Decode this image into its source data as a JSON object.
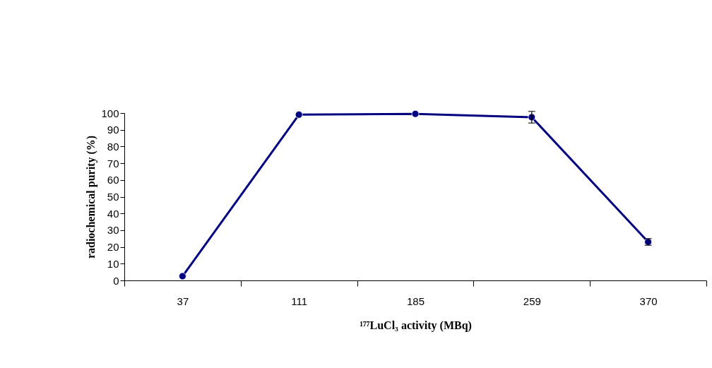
{
  "chart_data": {
    "type": "line",
    "xlabel": "¹⁷⁷LuCl₃ activity  (MBq)",
    "ylabel": "radiochemical purity    (%)",
    "categories": [
      "37",
      "111",
      "185",
      "259",
      "370"
    ],
    "series": [
      {
        "color": "#000080",
        "values": [
          2.5,
          99,
          99.5,
          97.5,
          23
        ],
        "errors": [
          null,
          null,
          null,
          3.5,
          2
        ]
      }
    ],
    "ylim": [
      0,
      100
    ],
    "yticks": [
      0,
      10,
      20,
      30,
      40,
      50,
      60,
      70,
      80,
      90,
      100
    ],
    "marker": "circle",
    "line_style": "solid",
    "grid": false
  }
}
